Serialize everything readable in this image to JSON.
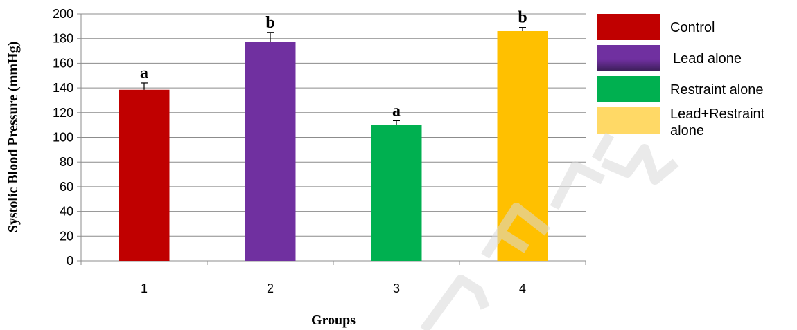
{
  "chart_data": {
    "type": "bar",
    "categories": [
      "1",
      "2",
      "3",
      "4"
    ],
    "values": [
      138.5,
      177.5,
      110,
      186
    ],
    "errors": [
      5.5,
      7.5,
      3.5,
      3
    ],
    "letters": [
      "a",
      "b",
      "a",
      "b"
    ],
    "colors": [
      "#C00000",
      "#7030A0",
      "#00B050",
      "#FFC000"
    ],
    "title": "",
    "xlabel": "Groups",
    "ylabel": "Systolic Blood Pressure (mmHg)",
    "ylim": [
      0,
      200
    ],
    "yticks": [
      "0",
      "20",
      "40",
      "60",
      "80",
      "100",
      "120",
      "140",
      "160",
      "180",
      "200"
    ],
    "grid": true,
    "legend_position": "right",
    "legend": [
      {
        "label": "Control",
        "color": "#C00000"
      },
      {
        "label": "Lead alone",
        "color": "#7030A0"
      },
      {
        "label": "Restraint alone",
        "color": "#00B050"
      },
      {
        "label": "Lead+Restraint alone",
        "color": "#FFD966"
      }
    ]
  }
}
